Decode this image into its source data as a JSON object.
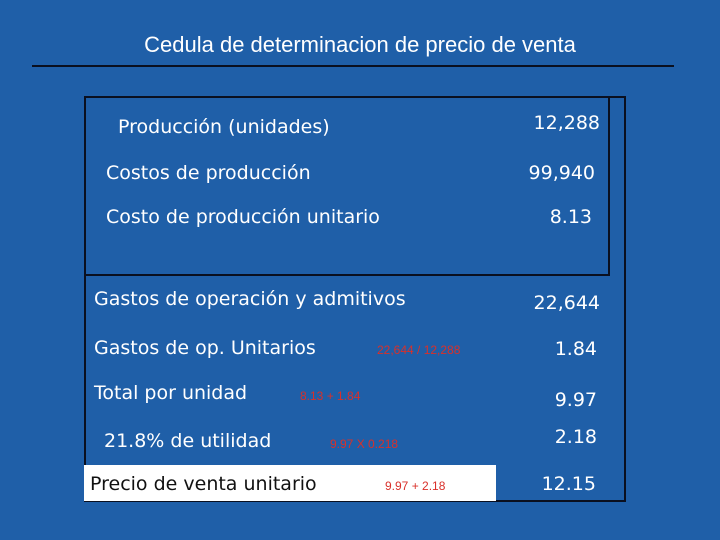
{
  "title": "Cedula de determinacion de precio de venta",
  "rows": [
    {
      "label": "Producción  (unidades)",
      "value": "12,288"
    },
    {
      "label": "Costos de producción",
      "value": "99,940"
    },
    {
      "label": "Costo de producción unitario",
      "value": "8.13"
    },
    {
      "label": "Gastos de operación y admitivos",
      "value": "22,644"
    },
    {
      "label": "Gastos de op. Unitarios",
      "note": "22,644 / 12,288",
      "value": "1.84"
    },
    {
      "label": "Total por unidad",
      "note": "8.13 + 1.84",
      "value": "9.97"
    },
    {
      "label": "21.8%  de utilidad",
      "note": "9.97  X  0.218",
      "value": "2.18"
    },
    {
      "label": "Precio de venta unitario",
      "note": "9.97 + 2.18",
      "value": "12.15"
    }
  ],
  "colors": {
    "background": "#1f5fa8",
    "text": "#ffffff",
    "note": "#d9302a",
    "line": "#0a1020"
  }
}
